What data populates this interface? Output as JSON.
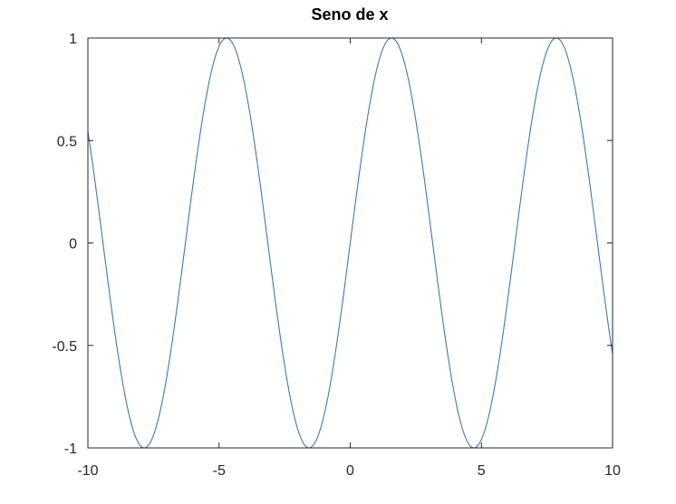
{
  "chart_data": {
    "type": "line",
    "title": "Seno de x",
    "xlabel": "",
    "ylabel": "",
    "xlim": [
      -10,
      10
    ],
    "ylim": [
      -1,
      1
    ],
    "grid": false,
    "function": "sin(x)",
    "x_ticks": [
      "-10",
      "-5",
      "0",
      "5",
      "10"
    ],
    "y_ticks": [
      "-1",
      "-0.5",
      "0",
      "0.5",
      "1"
    ],
    "series": [
      {
        "color": "#3b7ab5",
        "x": [
          -10,
          -9.5,
          -9,
          -8.5,
          -8,
          -7.854,
          -7.5,
          -7,
          -6.5,
          -6,
          -5.5,
          -5,
          -4.712,
          -4.5,
          -4,
          -3.5,
          -3,
          -2.5,
          -2,
          -1.571,
          -1.5,
          -1,
          -0.5,
          0,
          0.5,
          1,
          1.5,
          1.571,
          2,
          2.5,
          3,
          3.5,
          4,
          4.5,
          4.712,
          5,
          5.5,
          6,
          6.5,
          7,
          7.5,
          7.854,
          8,
          8.5,
          9,
          9.5,
          10
        ],
        "y": [
          0.544,
          0.075,
          -0.412,
          -0.798,
          -0.989,
          -1,
          -0.938,
          -0.657,
          -0.215,
          0.279,
          0.706,
          0.959,
          1,
          0.978,
          0.757,
          0.351,
          -0.141,
          -0.598,
          -0.909,
          -1,
          -0.997,
          -0.841,
          -0.479,
          0,
          0.479,
          0.841,
          0.997,
          1,
          0.909,
          0.598,
          0.141,
          -0.351,
          -0.757,
          -0.978,
          -1,
          -0.959,
          -0.706,
          -0.279,
          0.215,
          0.657,
          0.938,
          1,
          0.989,
          0.798,
          0.412,
          -0.075,
          -0.544
        ]
      }
    ]
  }
}
